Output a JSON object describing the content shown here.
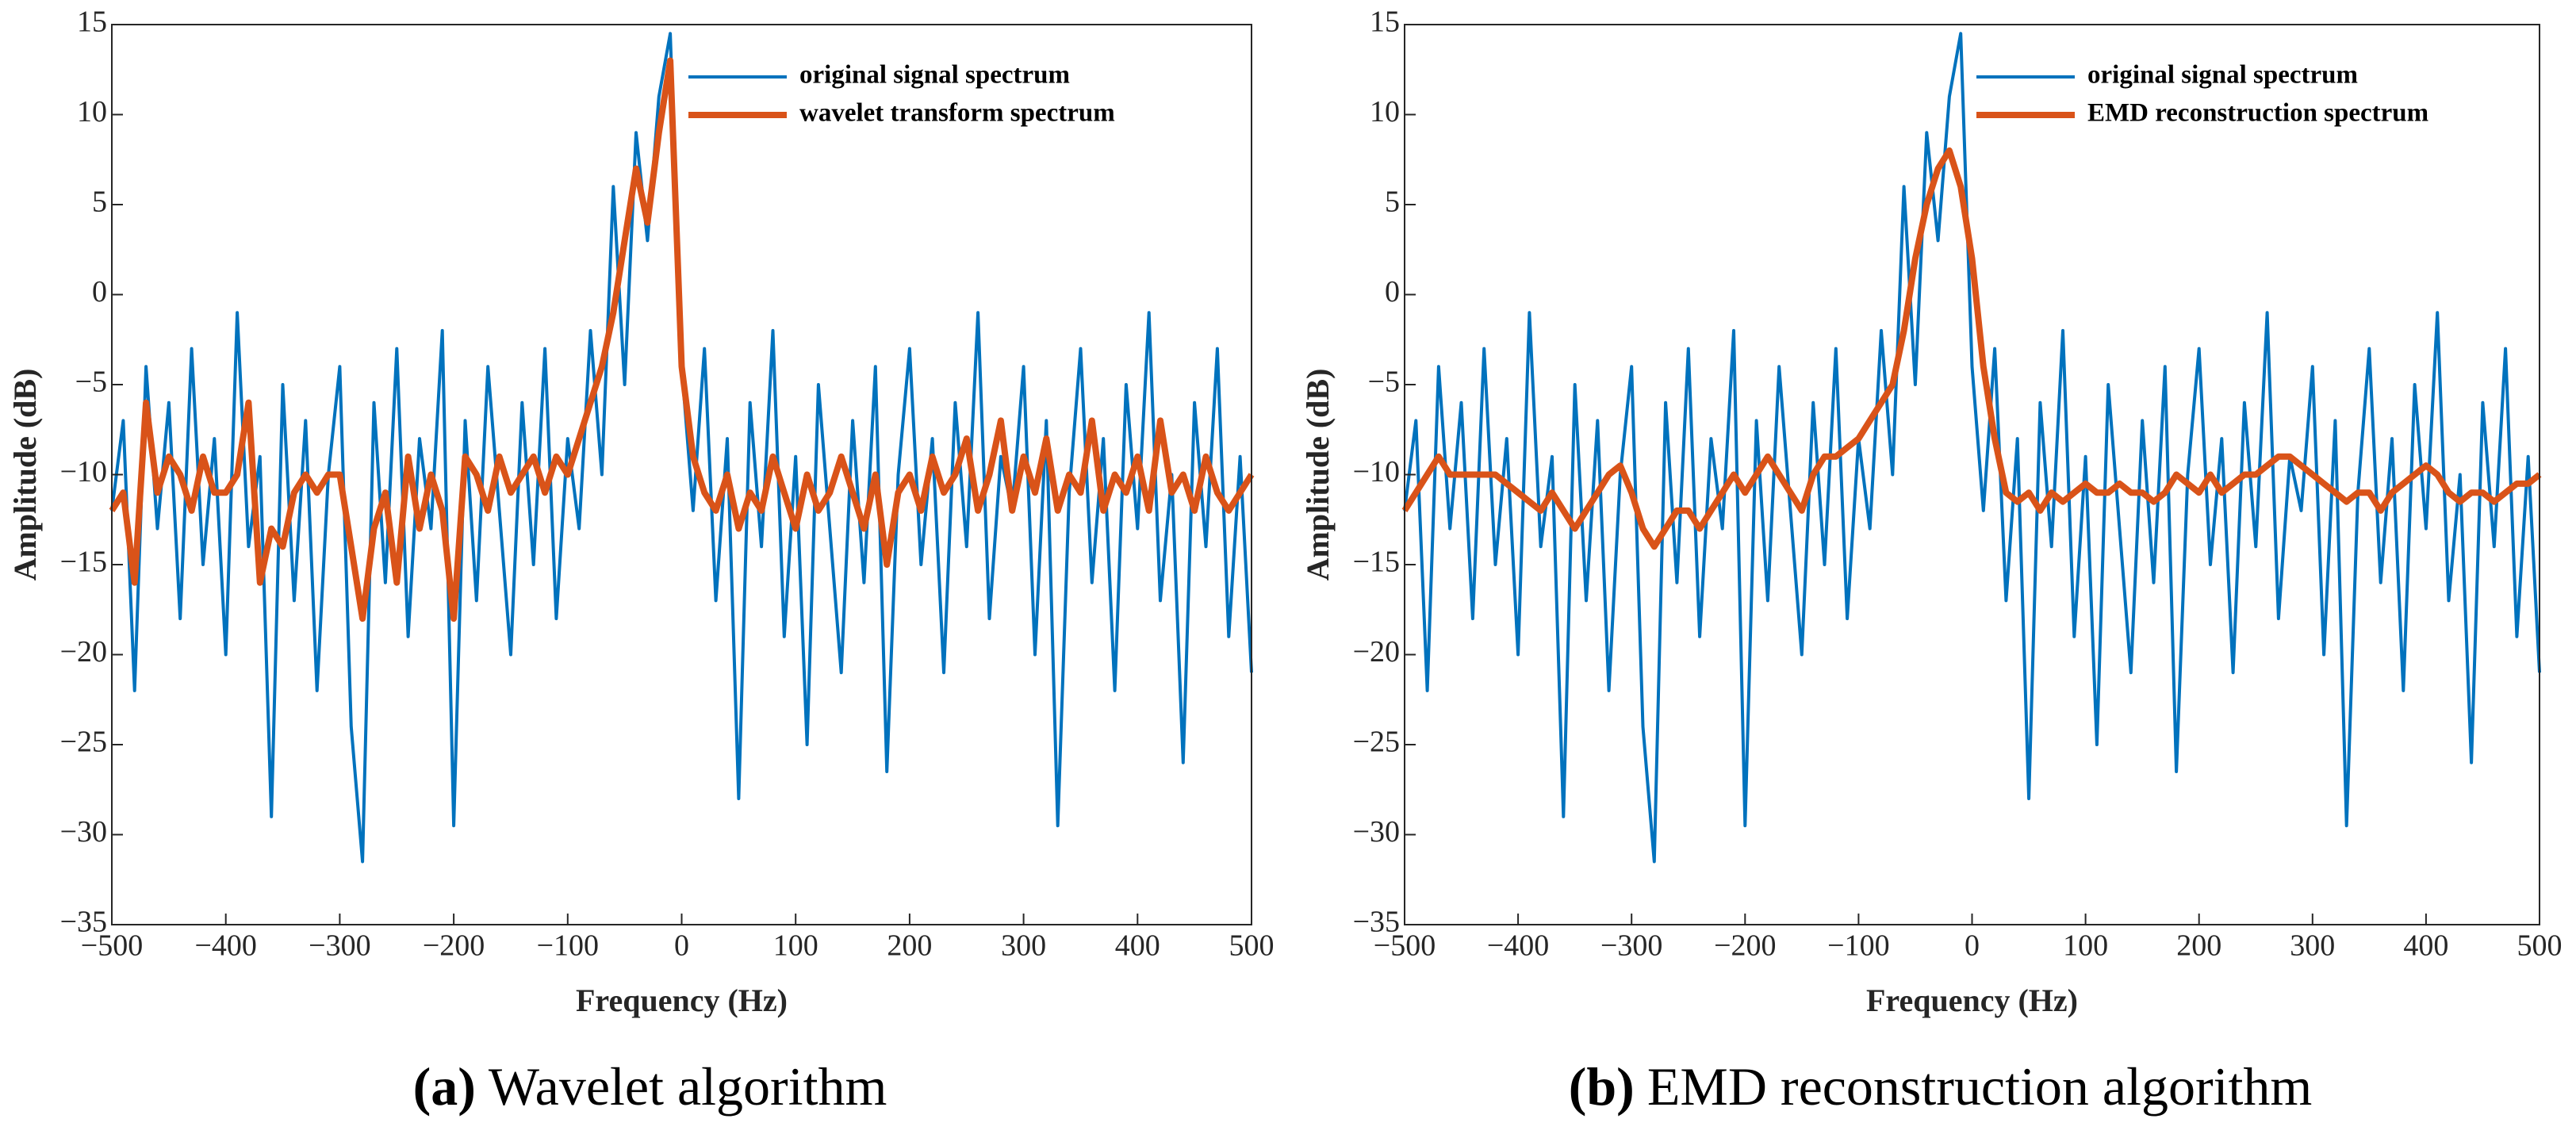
{
  "chart_data": [
    {
      "type": "line",
      "xlabel": "Frequency (Hz)",
      "ylabel": "Amplitude (dB)",
      "caption_label": "(a)",
      "caption": "Wavelet algorithm",
      "legend": "upper right",
      "x": [
        -500,
        -490,
        -480,
        -470,
        -460,
        -450,
        -440,
        -430,
        -420,
        -410,
        -400,
        -390,
        -380,
        -370,
        -360,
        -350,
        -340,
        -330,
        -320,
        -310,
        -300,
        -290,
        -280,
        -270,
        -260,
        -250,
        -240,
        -230,
        -220,
        -210,
        -200,
        -190,
        -180,
        -170,
        -160,
        -150,
        -140,
        -130,
        -120,
        -110,
        -100,
        -90,
        -80,
        -70,
        -60,
        -50,
        -40,
        -30,
        -20,
        -10,
        0,
        10,
        20,
        30,
        40,
        50,
        60,
        70,
        80,
        90,
        100,
        110,
        120,
        130,
        140,
        150,
        160,
        170,
        180,
        190,
        200,
        210,
        220,
        230,
        240,
        250,
        260,
        270,
        280,
        290,
        300,
        310,
        320,
        330,
        340,
        350,
        360,
        370,
        380,
        390,
        400,
        410,
        420,
        430,
        440,
        450,
        460,
        470,
        480,
        490,
        500
      ],
      "series": [
        {
          "name": "original signal spectrum",
          "color": "#0072BD",
          "values": [
            -12,
            -7,
            -22,
            -4,
            -13,
            -6,
            -18,
            -3,
            -15,
            -8,
            -20,
            -1,
            -14,
            -9,
            -29,
            -5,
            -17,
            -7,
            -22,
            -10,
            -4,
            -24,
            -31.5,
            -6,
            -16,
            -3,
            -19,
            -8,
            -13,
            -2,
            -29.5,
            -7,
            -17,
            -4,
            -12,
            -20,
            -6,
            -15,
            -3,
            -18,
            -8,
            -13,
            -2,
            -10,
            6,
            -5,
            9,
            3,
            11,
            14.5,
            -4,
            -12,
            -3,
            -17,
            -8,
            -28,
            -6,
            -14,
            -2,
            -19,
            -9,
            -25,
            -5,
            -13,
            -21,
            -7,
            -16,
            -4,
            -26.5,
            -10,
            -3,
            -15,
            -8,
            -21,
            -6,
            -14,
            -1,
            -18,
            -9,
            -12,
            -4,
            -20,
            -7,
            -29.5,
            -11,
            -3,
            -16,
            -8,
            -22,
            -5,
            -13,
            -1,
            -17,
            -10,
            -26,
            -6,
            -14,
            -3,
            -19,
            -9,
            -21
          ]
        },
        {
          "name": "wavelet transform spectrum",
          "color": "#D95319",
          "values": [
            -12,
            -11,
            -16,
            -6,
            -11,
            -9,
            -10,
            -12,
            -9,
            -11,
            -11,
            -10,
            -6,
            -16,
            -13,
            -14,
            -11,
            -10,
            -11,
            -10,
            -10,
            -14,
            -18,
            -13,
            -11,
            -16,
            -9,
            -13,
            -10,
            -12,
            -18,
            -9,
            -10,
            -12,
            -9,
            -11,
            -10,
            -9,
            -11,
            -9,
            -10,
            -8,
            -6,
            -4,
            -1,
            3,
            7,
            4,
            9,
            13,
            -4,
            -9,
            -11,
            -12,
            -10,
            -13,
            -11,
            -12,
            -9,
            -11,
            -13,
            -10,
            -12,
            -11,
            -9,
            -11,
            -13,
            -10,
            -15,
            -11,
            -10,
            -12,
            -9,
            -11,
            -10,
            -8,
            -12,
            -10,
            -7,
            -12,
            -9,
            -11,
            -8,
            -12,
            -10,
            -11,
            -7,
            -12,
            -10,
            -11,
            -9,
            -12,
            -7,
            -11,
            -10,
            -12,
            -9,
            -11,
            -12,
            -11,
            -10
          ]
        }
      ],
      "xlim": [
        -500,
        500
      ],
      "ylim": [
        -35,
        15
      ],
      "xticks": [
        {
          "value": -500,
          "label": "−500"
        },
        {
          "value": -400,
          "label": "−400"
        },
        {
          "value": -300,
          "label": "−300"
        },
        {
          "value": -200,
          "label": "−200"
        },
        {
          "value": -100,
          "label": "−100"
        },
        0,
        100,
        200,
        300,
        400,
        500
      ],
      "yticks": [
        {
          "value": -35,
          "label": "−35"
        },
        {
          "value": -30,
          "label": "−30"
        },
        {
          "value": -25,
          "label": "−25"
        },
        {
          "value": -20,
          "label": "−20"
        },
        {
          "value": -15,
          "label": "−15"
        },
        {
          "value": -10,
          "label": "−10"
        },
        {
          "value": -5,
          "label": "−5"
        },
        0,
        5,
        10,
        15
      ]
    },
    {
      "type": "line",
      "xlabel": "Frequency (Hz)",
      "ylabel": "Amplitude (dB)",
      "caption_label": "(b)",
      "caption": "EMD reconstruction algorithm",
      "legend": "upper right",
      "x": [
        -500,
        -490,
        -480,
        -470,
        -460,
        -450,
        -440,
        -430,
        -420,
        -410,
        -400,
        -390,
        -380,
        -370,
        -360,
        -350,
        -340,
        -330,
        -320,
        -310,
        -300,
        -290,
        -280,
        -270,
        -260,
        -250,
        -240,
        -230,
        -220,
        -210,
        -200,
        -190,
        -180,
        -170,
        -160,
        -150,
        -140,
        -130,
        -120,
        -110,
        -100,
        -90,
        -80,
        -70,
        -60,
        -50,
        -40,
        -30,
        -20,
        -10,
        0,
        10,
        20,
        30,
        40,
        50,
        60,
        70,
        80,
        90,
        100,
        110,
        120,
        130,
        140,
        150,
        160,
        170,
        180,
        190,
        200,
        210,
        220,
        230,
        240,
        250,
        260,
        270,
        280,
        290,
        300,
        310,
        320,
        330,
        340,
        350,
        360,
        370,
        380,
        390,
        400,
        410,
        420,
        430,
        440,
        450,
        460,
        470,
        480,
        490,
        500
      ],
      "series": [
        {
          "name": "original signal spectrum",
          "color": "#0072BD",
          "values": [
            -12,
            -7,
            -22,
            -4,
            -13,
            -6,
            -18,
            -3,
            -15,
            -8,
            -20,
            -1,
            -14,
            -9,
            -29,
            -5,
            -17,
            -7,
            -22,
            -10,
            -4,
            -24,
            -31.5,
            -6,
            -16,
            -3,
            -19,
            -8,
            -13,
            -2,
            -29.5,
            -7,
            -17,
            -4,
            -12,
            -20,
            -6,
            -15,
            -3,
            -18,
            -8,
            -13,
            -2,
            -10,
            6,
            -5,
            9,
            3,
            11,
            14.5,
            -4,
            -12,
            -3,
            -17,
            -8,
            -28,
            -6,
            -14,
            -2,
            -19,
            -9,
            -25,
            -5,
            -13,
            -21,
            -7,
            -16,
            -4,
            -26.5,
            -10,
            -3,
            -15,
            -8,
            -21,
            -6,
            -14,
            -1,
            -18,
            -9,
            -12,
            -4,
            -20,
            -7,
            -29.5,
            -11,
            -3,
            -16,
            -8,
            -22,
            -5,
            -13,
            -1,
            -17,
            -10,
            -26,
            -6,
            -14,
            -3,
            -19,
            -9,
            -21
          ]
        },
        {
          "name": "EMD reconstruction spectrum",
          "color": "#D95319",
          "values": [
            -12,
            -11,
            -10,
            -9,
            -10,
            -10,
            -10,
            -10,
            -10,
            -10.5,
            -11,
            -11.5,
            -12,
            -11,
            -12,
            -13,
            -12,
            -11,
            -10,
            -9.5,
            -11,
            -13,
            -14,
            -13,
            -12,
            -12,
            -13,
            -12,
            -11,
            -10,
            -11,
            -10,
            -9,
            -10,
            -11,
            -12,
            -10,
            -9,
            -9,
            -8.5,
            -8,
            -7,
            -6,
            -5,
            -2,
            2,
            5,
            7,
            8,
            6,
            2,
            -4,
            -8,
            -11,
            -11.5,
            -11,
            -12,
            -11,
            -11.5,
            -11,
            -10.5,
            -11,
            -11,
            -10.5,
            -11,
            -11,
            -11.5,
            -11,
            -10,
            -10.5,
            -11,
            -10,
            -11,
            -10.5,
            -10,
            -10,
            -9.5,
            -9,
            -9,
            -9.5,
            -10,
            -10.5,
            -11,
            -11.5,
            -11,
            -11,
            -12,
            -11,
            -10.5,
            -10,
            -9.5,
            -10,
            -11,
            -11.5,
            -11,
            -11,
            -11.5,
            -11,
            -10.5,
            -10.5,
            -10
          ]
        }
      ],
      "xlim": [
        -500,
        500
      ],
      "ylim": [
        -35,
        15
      ],
      "xticks": [
        {
          "value": -500,
          "label": "−500"
        },
        {
          "value": -400,
          "label": "−400"
        },
        {
          "value": -300,
          "label": "−300"
        },
        {
          "value": -200,
          "label": "−200"
        },
        {
          "value": -100,
          "label": "−100"
        },
        0,
        100,
        200,
        300,
        400,
        500
      ],
      "yticks": [
        {
          "value": -35,
          "label": "−35"
        },
        {
          "value": -30,
          "label": "−30"
        },
        {
          "value": -25,
          "label": "−25"
        },
        {
          "value": -20,
          "label": "−20"
        },
        {
          "value": -15,
          "label": "−15"
        },
        {
          "value": -10,
          "label": "−10"
        },
        {
          "value": -5,
          "label": "−5"
        },
        0,
        5,
        10,
        15
      ]
    }
  ]
}
